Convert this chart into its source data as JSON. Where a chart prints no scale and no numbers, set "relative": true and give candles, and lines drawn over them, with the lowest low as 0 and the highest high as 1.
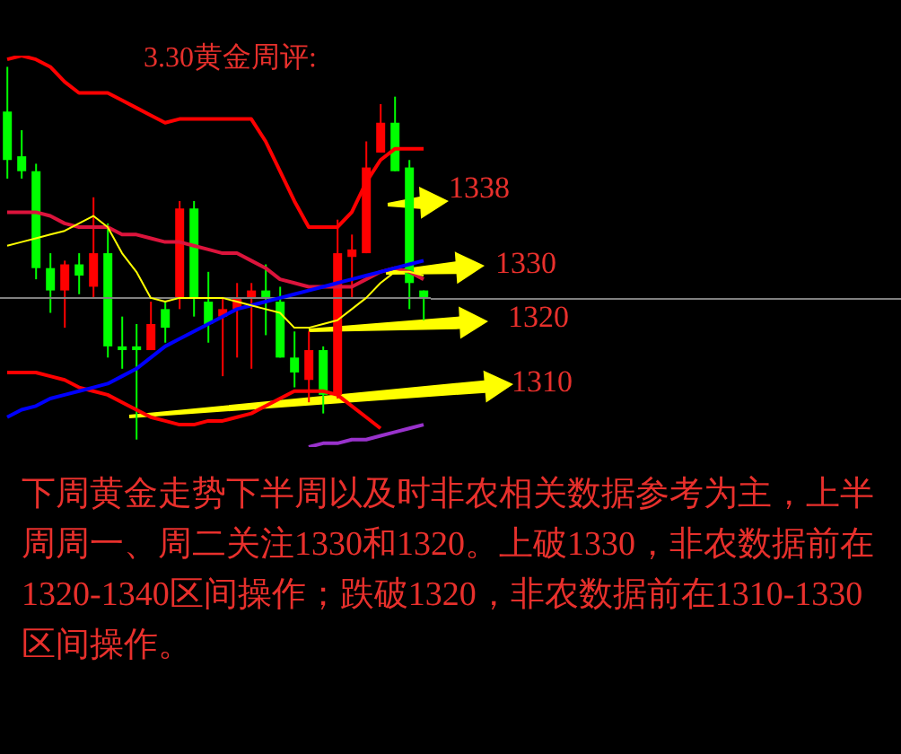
{
  "chart_data": {
    "type": "candlestick",
    "title": "3.30黄金周评:",
    "relative": true,
    "categories": [
      null,
      null,
      null,
      null,
      null,
      null,
      null,
      null,
      null,
      null,
      null,
      null,
      null,
      null,
      null,
      null,
      null,
      null,
      null,
      null,
      null,
      null,
      null,
      null,
      null,
      null,
      null,
      null,
      null,
      null
    ],
    "ohlc": [
      [
        0.88,
        1,
        0.7,
        0.75
      ],
      [
        0.76,
        0.83,
        0.7,
        0.72
      ],
      [
        0.72,
        0.74,
        0.43,
        0.46
      ],
      [
        0.46,
        0.5,
        0.34,
        0.4
      ],
      [
        0.4,
        0.48,
        0.3,
        0.47
      ],
      [
        0.47,
        0.5,
        0.39,
        0.44
      ],
      [
        0.41,
        0.65,
        0.38,
        0.5
      ],
      [
        0.5,
        0.58,
        0.22,
        0.25
      ],
      [
        0.25,
        0.33,
        0.19,
        0.24
      ],
      [
        0.25,
        0.31,
        0,
        0.24
      ],
      [
        0.24,
        0.37,
        0.24,
        0.31
      ],
      [
        0.35,
        0.37,
        0.26,
        0.3
      ],
      [
        0.38,
        0.64,
        0.35,
        0.62
      ],
      [
        0.62,
        0.64,
        0.33,
        0.38
      ],
      [
        0.37,
        0.45,
        0.26,
        0.31
      ],
      [
        0.33,
        0.38,
        0.17,
        0.35
      ],
      [
        0.35,
        0.42,
        0.22,
        0.38
      ],
      [
        0.38,
        0.42,
        0.19,
        0.4
      ],
      [
        0.4,
        0.47,
        0.28,
        0.38
      ],
      [
        0.37,
        0.41,
        0.22,
        0.22
      ],
      [
        0.22,
        0.29,
        0.14,
        0.18
      ],
      [
        0.16,
        0.29,
        0.1,
        0.24
      ],
      [
        0.24,
        0.25,
        0.07,
        0.12
      ],
      [
        0.12,
        0.59,
        0.11,
        0.5
      ],
      [
        0.49,
        0.55,
        0.38,
        0.51
      ],
      [
        0.5,
        0.8,
        0.5,
        0.73
      ],
      [
        0.77,
        0.9,
        0.77,
        0.85
      ],
      [
        0.85,
        0.92,
        0.72,
        0.72
      ],
      [
        0.73,
        0.75,
        0.35,
        0.42
      ],
      [
        0.4,
        0.4,
        0.32,
        0.38
      ]
    ],
    "colors": [
      "#00ff00",
      "#00ff00",
      "#00ff00",
      "#00ff00",
      "#ff0000",
      "#00ff00",
      "#ff0000",
      "#00ff00",
      "#00ff00",
      "#00ff00",
      "#ff0000",
      "#00ff00",
      "#ff0000",
      "#00ff00",
      "#00ff00",
      "#ff0000",
      "#ff0000",
      "#ff0000",
      "#00ff00",
      "#00ff00",
      "#00ff00",
      "#ff0000",
      "#00ff00",
      "#ff0000",
      "#ff0000",
      "#ff0000",
      "#ff0000",
      "#00ff00",
      "#00ff00",
      "#00ff00"
    ],
    "series": [
      {
        "type": "line",
        "color": "#ff0000",
        "values": [
          1.02,
          1.03,
          1.02,
          1.0,
          0.96,
          0.93,
          0.93,
          0.93,
          0.91,
          0.89,
          0.87,
          0.85,
          0.86,
          0.86,
          0.86,
          0.86,
          0.86,
          0.86,
          0.8,
          0.72,
          0.64,
          0.57,
          0.57,
          0.57,
          0.61,
          0.69,
          0.75,
          0.78,
          0.78,
          0.78
        ]
      },
      {
        "type": "line",
        "color": "#dc143c",
        "values": [
          0.61,
          0.61,
          0.61,
          0.6,
          0.58,
          0.57,
          0.57,
          0.57,
          0.55,
          0.55,
          0.54,
          0.53,
          0.53,
          0.52,
          0.51,
          0.5,
          0.5,
          0.48,
          0.46,
          0.43,
          0.42,
          0.41,
          0.41,
          0.41,
          0.41,
          0.43,
          0.45,
          0.46,
          0.45,
          0.43
        ]
      },
      {
        "type": "line",
        "color": "#ff0000",
        "values": [
          0.18,
          0.18,
          0.18,
          0.17,
          0.16,
          0.14,
          0.13,
          0.12,
          0.1,
          0.08,
          0.06,
          0.05,
          0.04,
          0.04,
          0.05,
          0.05,
          0.06,
          0.07,
          0.09,
          0.11,
          0.13,
          0.13,
          0.13,
          0.12,
          0.09,
          0.06,
          0.03,
          null,
          null,
          null
        ]
      },
      {
        "type": "line",
        "color": "#9932cc",
        "values": [
          null,
          null,
          null,
          null,
          null,
          null,
          null,
          null,
          null,
          null,
          null,
          null,
          null,
          null,
          null,
          null,
          null,
          null,
          null,
          null,
          null,
          -0.02,
          -0.01,
          -0.01,
          0,
          0,
          0.01,
          0.02,
          0.03,
          0.04
        ]
      },
      {
        "type": "line",
        "color": "#0000ff",
        "values": [
          0.06,
          0.08,
          0.09,
          0.11,
          0.12,
          0.13,
          0.14,
          0.15,
          0.17,
          0.19,
          0.22,
          0.25,
          0.27,
          0.29,
          0.31,
          0.33,
          0.35,
          0.36,
          0.37,
          0.38,
          0.39,
          0.4,
          0.41,
          0.42,
          0.43,
          0.44,
          0.45,
          0.46,
          0.47,
          0.48
        ]
      },
      {
        "type": "line",
        "color": "#ffff00",
        "values": [
          0.52,
          0.53,
          0.54,
          0.55,
          0.56,
          0.58,
          0.6,
          0.57,
          0.5,
          0.45,
          0.38,
          0.37,
          0.38,
          0.38,
          0.38,
          0.38,
          0.37,
          0.36,
          0.35,
          0.34,
          0.3,
          0.3,
          0.31,
          0.32,
          0.35,
          0.38,
          0.42,
          0.45,
          0.45,
          0.44
        ]
      }
    ],
    "ref_lines": [
      {
        "axis": "y",
        "value": 0.38,
        "color": "#808080"
      }
    ],
    "annotations": [
      "1338",
      "1330",
      "1320",
      "1310",
      "下周黄金走势下半周以及时非农相关数据参考为主，上半周周一、周二关注1330和1320。上破1330，非农数据前在1320-1340区间操作；跌破1320，非农数据前在1310-1330区间操作。"
    ]
  }
}
